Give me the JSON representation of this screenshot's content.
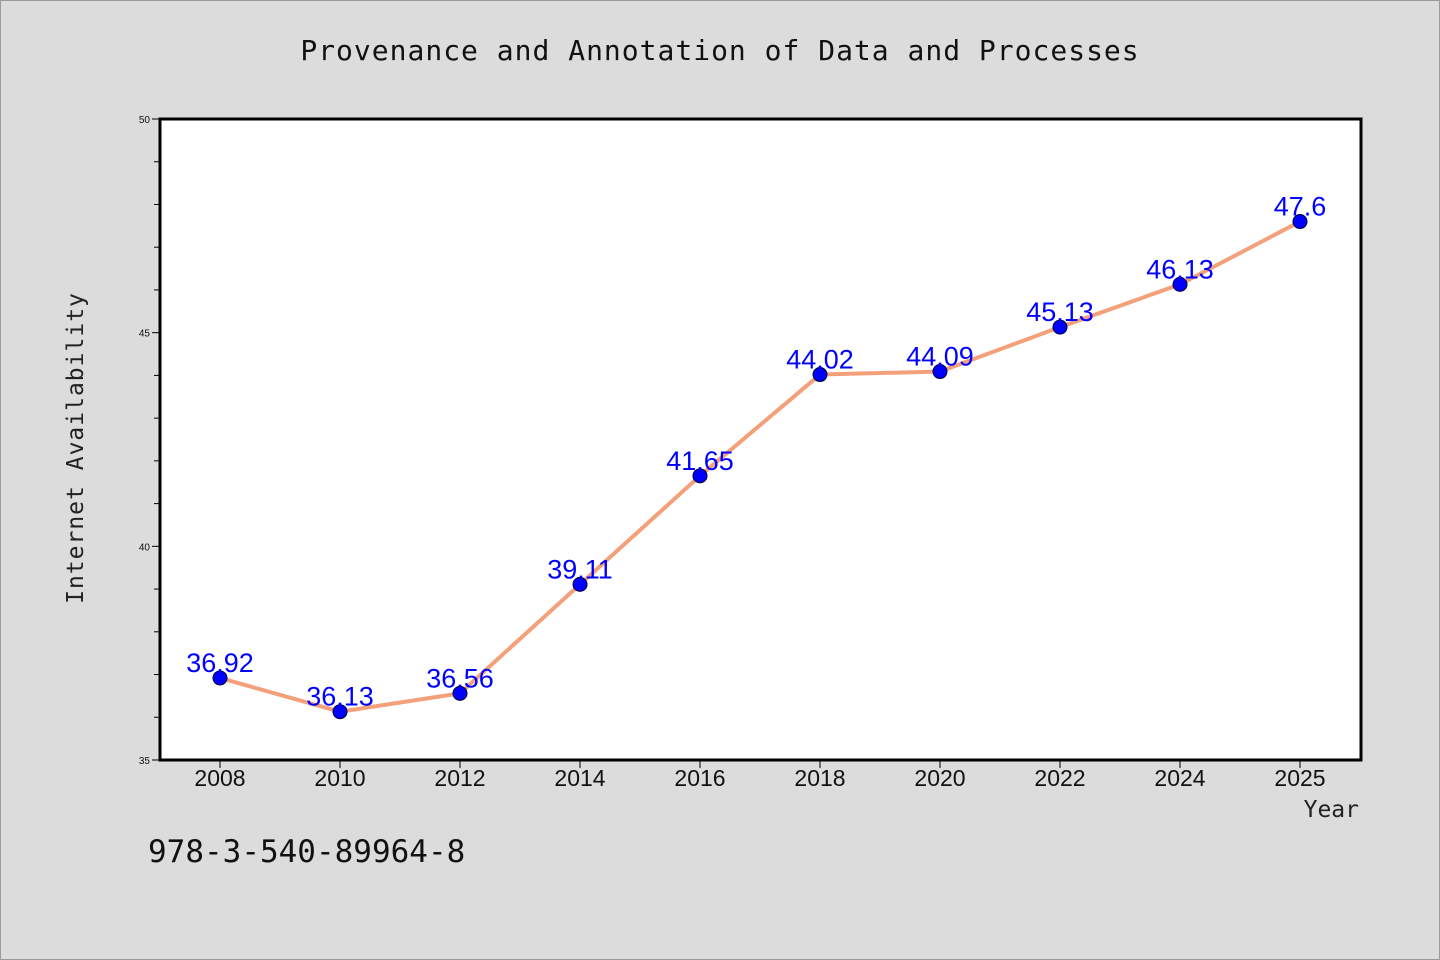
{
  "chart_data": {
    "type": "line",
    "title": "Provenance and Annotation of Data and Processes",
    "xlabel": "Year",
    "ylabel": "Internet Availability",
    "x": [
      "2008",
      "2010",
      "2012",
      "2014",
      "2016",
      "2018",
      "2020",
      "2022",
      "2024",
      "2025"
    ],
    "series": [
      {
        "values": [
          36.92,
          36.13,
          36.56,
          39.11,
          41.65,
          44.02,
          44.09,
          45.13,
          46.13,
          47.6
        ]
      }
    ],
    "data_labels": [
      "36.92",
      "36.13",
      "36.56",
      "39.11",
      "41.65",
      "44.02",
      "44.09",
      "45.13",
      "46.13",
      "47.6"
    ],
    "ylim": [
      35,
      50
    ],
    "yticks": [
      "35",
      "40",
      "45",
      "50"
    ],
    "grid": false,
    "colors": {
      "line": "#f4a07a",
      "marker": "#0000ff",
      "label": "#0000ff",
      "background": "#dcdcdc",
      "plot_bg": "#ffffff"
    }
  },
  "footer": {
    "isbn": "978-3-540-89964-8"
  }
}
